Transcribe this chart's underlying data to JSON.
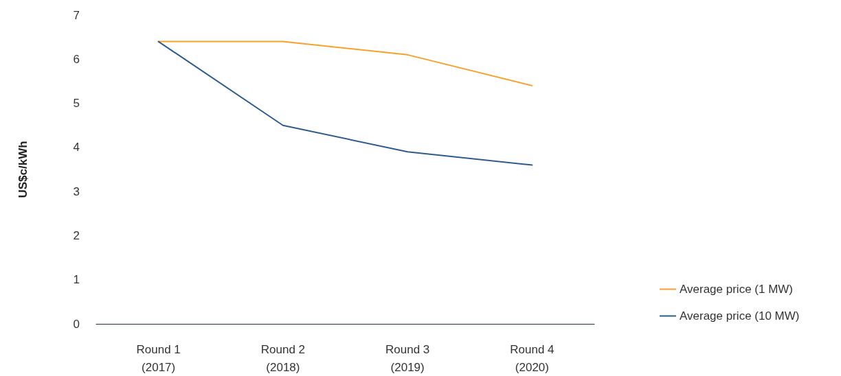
{
  "chart_data": {
    "type": "line",
    "ylabel": "US$c/kWh",
    "categories": [
      "Round 1\n(2017)",
      "Round 2\n(2018)",
      "Round 3\n(2019)",
      "Round 4\n(2020)"
    ],
    "series": [
      {
        "name": "Average price (1 MW)",
        "color": "#f7a129",
        "values": [
          6.4,
          6.4,
          6.1,
          5.4
        ]
      },
      {
        "name": "Average price (10 MW)",
        "color": "#2d5b8e",
        "values": [
          6.4,
          4.5,
          3.9,
          3.6
        ]
      }
    ],
    "ylim": [
      0,
      7
    ],
    "yticks": [
      0,
      1,
      2,
      3,
      4,
      5,
      6,
      7
    ],
    "grid": false,
    "legend": "bottom right",
    "marker": "none",
    "line_style": "solid"
  }
}
